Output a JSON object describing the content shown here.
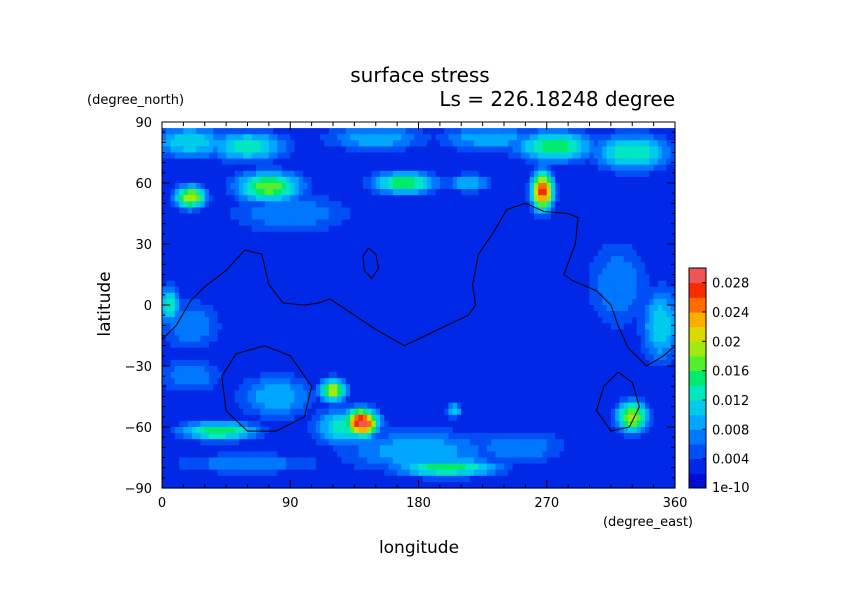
{
  "chart_data": {
    "type": "heatmap",
    "title": "surface stress",
    "subtitle": "Ls = 226.18248 degree",
    "xlabel": "longitude",
    "ylabel": "latitude",
    "x_units": "(degree_east)",
    "y_units": "(degree_north)",
    "xlim": [
      0,
      360
    ],
    "ylim": [
      -90,
      90
    ],
    "xticks": [
      0,
      90,
      180,
      270,
      360
    ],
    "yticks": [
      90,
      60,
      30,
      0,
      -30,
      -60,
      -90
    ],
    "colorbar": {
      "min_label": "1e-10",
      "tick_values": [
        0.004,
        0.008,
        0.012,
        0.016,
        0.02,
        0.024,
        0.028
      ],
      "tick_labels": [
        "0.004",
        "0.008",
        "0.012",
        "0.016",
        "0.02",
        "0.024",
        "0.028"
      ],
      "range": [
        0,
        0.03
      ]
    },
    "field": {
      "background": 0.002,
      "blobs": [
        {
          "lon": 20,
          "lat": 80,
          "rx": 30,
          "ry": 9,
          "v": 0.012
        },
        {
          "lon": 60,
          "lat": 78,
          "rx": 30,
          "ry": 8,
          "v": 0.014
        },
        {
          "lon": 150,
          "lat": 82,
          "rx": 40,
          "ry": 7,
          "v": 0.01
        },
        {
          "lon": 230,
          "lat": 82,
          "rx": 40,
          "ry": 7,
          "v": 0.01
        },
        {
          "lon": 275,
          "lat": 78,
          "rx": 30,
          "ry": 8,
          "v": 0.016
        },
        {
          "lon": 330,
          "lat": 75,
          "rx": 30,
          "ry": 10,
          "v": 0.014
        },
        {
          "lon": 20,
          "lat": 53,
          "rx": 12,
          "ry": 6,
          "v": 0.02
        },
        {
          "lon": 75,
          "lat": 58,
          "rx": 25,
          "ry": 8,
          "v": 0.018
        },
        {
          "lon": 170,
          "lat": 60,
          "rx": 25,
          "ry": 6,
          "v": 0.016
        },
        {
          "lon": 215,
          "lat": 60,
          "rx": 18,
          "ry": 5,
          "v": 0.01
        },
        {
          "lon": 267,
          "lat": 56,
          "rx": 8,
          "ry": 10,
          "v": 0.028
        },
        {
          "lon": 90,
          "lat": 45,
          "rx": 50,
          "ry": 12,
          "v": 0.008
        },
        {
          "lon": 5,
          "lat": 0,
          "rx": 8,
          "ry": 10,
          "v": 0.014
        },
        {
          "lon": 20,
          "lat": -10,
          "rx": 25,
          "ry": 15,
          "v": 0.008
        },
        {
          "lon": 350,
          "lat": -10,
          "rx": 15,
          "ry": 20,
          "v": 0.012
        },
        {
          "lon": 320,
          "lat": 10,
          "rx": 25,
          "ry": 25,
          "v": 0.008
        },
        {
          "lon": 20,
          "lat": -35,
          "rx": 25,
          "ry": 10,
          "v": 0.008
        },
        {
          "lon": 80,
          "lat": -45,
          "rx": 30,
          "ry": 12,
          "v": 0.01
        },
        {
          "lon": 120,
          "lat": -42,
          "rx": 10,
          "ry": 6,
          "v": 0.02
        },
        {
          "lon": 140,
          "lat": -58,
          "rx": 12,
          "ry": 7,
          "v": 0.03
        },
        {
          "lon": 130,
          "lat": -60,
          "rx": 25,
          "ry": 10,
          "v": 0.014
        },
        {
          "lon": 40,
          "lat": -62,
          "rx": 30,
          "ry": 5,
          "v": 0.016
        },
        {
          "lon": 205,
          "lat": -52,
          "rx": 6,
          "ry": 4,
          "v": 0.012
        },
        {
          "lon": 330,
          "lat": -55,
          "rx": 12,
          "ry": 8,
          "v": 0.02
        },
        {
          "lon": 200,
          "lat": -80,
          "rx": 40,
          "ry": 5,
          "v": 0.016
        },
        {
          "lon": 250,
          "lat": -70,
          "rx": 40,
          "ry": 10,
          "v": 0.008
        },
        {
          "lon": 180,
          "lat": -72,
          "rx": 60,
          "ry": 12,
          "v": 0.01
        },
        {
          "lon": 60,
          "lat": -78,
          "rx": 60,
          "ry": 6,
          "v": 0.008
        }
      ]
    },
    "contours": [
      [
        [
          0,
          -17
        ],
        [
          10,
          -10
        ],
        [
          20,
          2
        ],
        [
          30,
          9
        ],
        [
          45,
          17
        ],
        [
          58,
          27
        ],
        [
          70,
          25
        ],
        [
          75,
          10
        ],
        [
          85,
          1
        ],
        [
          100,
          0
        ],
        [
          110,
          1
        ],
        [
          118,
          3
        ],
        [
          135,
          -5
        ],
        [
          150,
          -12
        ],
        [
          170,
          -20
        ],
        [
          185,
          -15
        ],
        [
          200,
          -10
        ],
        [
          215,
          -5
        ],
        [
          220,
          0
        ],
        [
          218,
          10
        ],
        [
          222,
          25
        ],
        [
          232,
          35
        ],
        [
          242,
          47
        ],
        [
          255,
          50
        ],
        [
          268,
          46
        ],
        [
          285,
          45
        ],
        [
          292,
          43
        ],
        [
          290,
          30
        ],
        [
          282,
          15
        ],
        [
          288,
          12
        ],
        [
          305,
          7
        ],
        [
          315,
          0
        ],
        [
          320,
          -10
        ],
        [
          327,
          -21
        ],
        [
          340,
          -30
        ],
        [
          352,
          -25
        ],
        [
          360,
          -20
        ]
      ],
      [
        [
          145,
          28
        ],
        [
          150,
          25
        ],
        [
          152,
          18
        ],
        [
          147,
          13
        ],
        [
          142,
          17
        ],
        [
          141,
          24
        ],
        [
          145,
          28
        ]
      ],
      [
        [
          72,
          -20
        ],
        [
          90,
          -25
        ],
        [
          105,
          -40
        ],
        [
          100,
          -55
        ],
        [
          80,
          -62
        ],
        [
          60,
          -62
        ],
        [
          45,
          -52
        ],
        [
          42,
          -35
        ],
        [
          52,
          -24
        ],
        [
          72,
          -20
        ]
      ],
      [
        [
          320,
          -33
        ],
        [
          330,
          -38
        ],
        [
          335,
          -50
        ],
        [
          328,
          -60
        ],
        [
          315,
          -62
        ],
        [
          305,
          -52
        ],
        [
          310,
          -40
        ],
        [
          320,
          -33
        ]
      ]
    ]
  }
}
